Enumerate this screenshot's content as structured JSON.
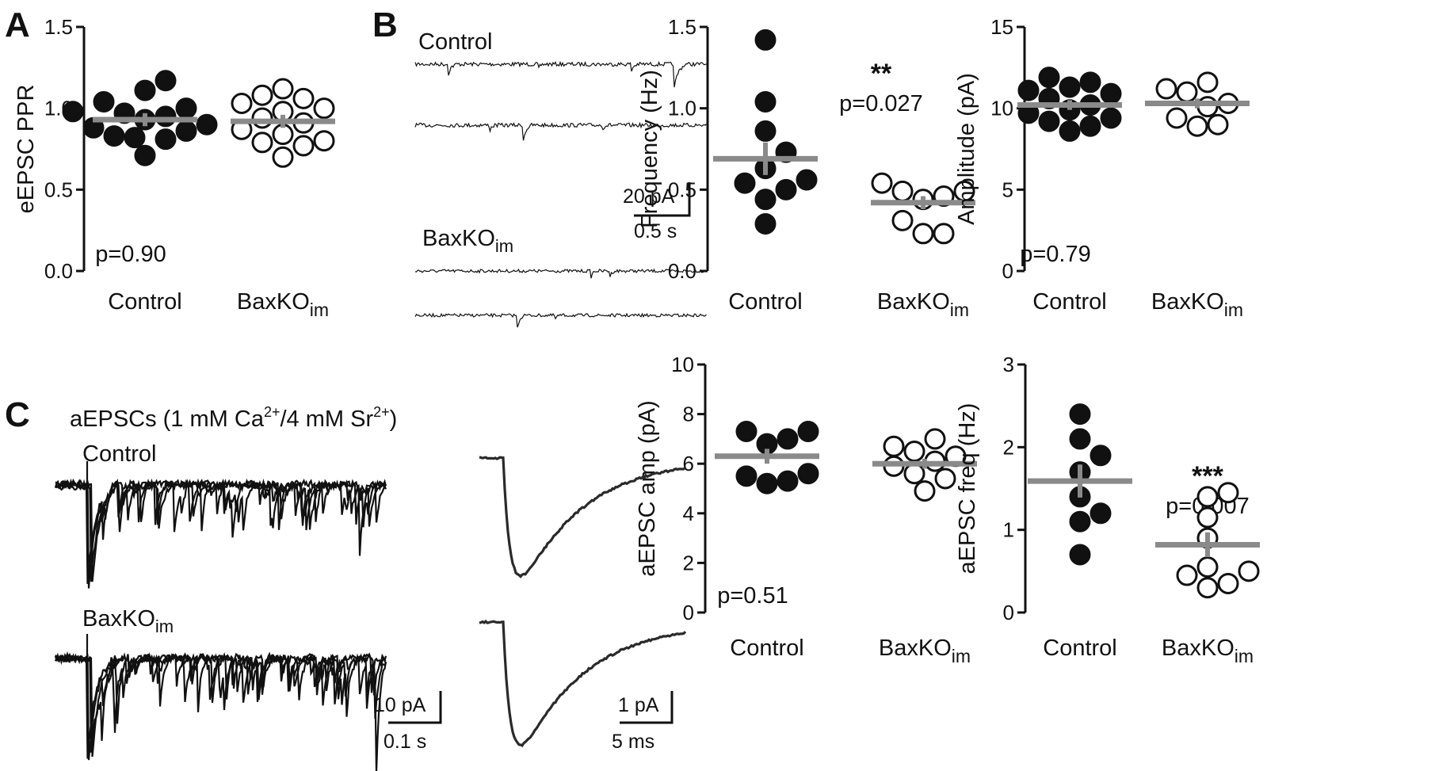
{
  "colors": {
    "filled": "#111111",
    "open": "#ffffff",
    "mean_bar": "#8a8a8a",
    "axis": "#111111"
  },
  "panels": [
    {
      "letter": "A"
    },
    {
      "letter": "B"
    },
    {
      "letter": "C"
    }
  ],
  "traces": {
    "B": {
      "control_label": "Control",
      "baxko_label": "BaxKO",
      "baxko_sub": "im",
      "scale_amp": "20 pA",
      "scale_time": "0.5 s"
    },
    "C": {
      "heading": "aEPSCs (1 mM Ca",
      "heading_sup1": "2+",
      "heading_mid": "/4 mM Sr",
      "heading_sup2": "2+",
      "heading_end": ")",
      "control_label": "Control",
      "baxko_label": "BaxKO",
      "baxko_sub": "im",
      "scale_amp_1": "10 pA",
      "scale_time_1": "0.1 s",
      "scale_amp_2": "1 pA",
      "scale_time_2": "5 ms"
    }
  },
  "chart_data": [
    {
      "id": "A",
      "type": "scatter",
      "ylabel": "eEPSC PPR",
      "ylim": [
        0,
        1.5
      ],
      "yticks": [
        "0.0",
        "0.5",
        "1.0",
        "1.5"
      ],
      "categories": [
        "Control",
        "BaxKO"
      ],
      "category_sub": [
        "",
        "im"
      ],
      "pvalue": "p=0.90",
      "stars": "",
      "series": [
        {
          "style": "filled",
          "values": [
            0.71,
            0.81,
            0.82,
            0.83,
            0.86,
            0.88,
            0.9,
            0.93,
            0.95,
            0.97,
            0.98,
            1.0,
            1.04,
            1.11,
            1.17
          ],
          "mean": 0.93,
          "sem": 0.04
        },
        {
          "style": "open",
          "values": [
            0.7,
            0.77,
            0.79,
            0.8,
            0.84,
            0.87,
            0.91,
            0.94,
            0.98,
            1.0,
            1.03,
            1.06,
            1.08,
            1.12
          ],
          "mean": 0.92,
          "sem": 0.04
        }
      ]
    },
    {
      "id": "B-freq",
      "type": "scatter",
      "ylabel": "Frequency (Hz)",
      "ylim": [
        0,
        1.5
      ],
      "yticks": [
        "0.0",
        "0.5",
        "1.0",
        "1.5"
      ],
      "categories": [
        "Control",
        "BaxKO"
      ],
      "category_sub": [
        "",
        "im"
      ],
      "pvalue": "p=0.027",
      "stars": "**",
      "series": [
        {
          "style": "filled",
          "values": [
            0.29,
            0.44,
            0.5,
            0.54,
            0.56,
            0.63,
            0.73,
            0.86,
            1.04,
            1.42
          ],
          "mean": 0.69,
          "sem": 0.1
        },
        {
          "style": "open",
          "values": [
            0.23,
            0.23,
            0.31,
            0.44,
            0.46,
            0.49,
            0.49,
            0.54
          ],
          "mean": 0.42,
          "sem": 0.04
        }
      ]
    },
    {
      "id": "B-amp",
      "type": "scatter",
      "ylabel": "Amplitude (pA)",
      "ylim": [
        0,
        15
      ],
      "yticks": [
        "0",
        "5",
        "10",
        "15"
      ],
      "categories": [
        "Control",
        "BaxKO"
      ],
      "category_sub": [
        "",
        "im"
      ],
      "pvalue": "p=0.79",
      "stars": "",
      "series": [
        {
          "style": "filled",
          "values": [
            8.6,
            8.9,
            9.2,
            9.4,
            9.7,
            9.9,
            10.2,
            10.6,
            10.9,
            11.1,
            11.3,
            11.6,
            11.9
          ],
          "mean": 10.2,
          "sem": 0.3
        },
        {
          "style": "open",
          "values": [
            8.9,
            9.0,
            9.4,
            10.1,
            10.3,
            11.0,
            11.2,
            11.6
          ],
          "mean": 10.3,
          "sem": 0.3
        }
      ]
    },
    {
      "id": "C-amp",
      "type": "scatter",
      "ylabel": "aEPSC amp (pA)",
      "ylim": [
        0,
        10
      ],
      "yticks": [
        "0",
        "2",
        "4",
        "6",
        "8",
        "10"
      ],
      "categories": [
        "Control",
        "BaxKO"
      ],
      "category_sub": [
        "",
        "im"
      ],
      "pvalue": "p=0.51",
      "stars": "",
      "series": [
        {
          "style": "filled",
          "values": [
            5.2,
            5.3,
            5.5,
            5.6,
            6.8,
            7.0,
            7.3,
            7.3
          ],
          "mean": 6.3,
          "sem": 0.3
        },
        {
          "style": "open",
          "values": [
            4.9,
            5.4,
            5.6,
            5.9,
            6.1,
            6.3,
            6.5,
            6.7,
            7.0
          ],
          "mean": 6.0,
          "sem": 0.2
        }
      ]
    },
    {
      "id": "C-freq",
      "type": "scatter",
      "ylabel": "aEPSC freq (Hz)",
      "ylim": [
        0,
        3
      ],
      "yticks": [
        "0",
        "1",
        "2",
        "3"
      ],
      "categories": [
        "Control",
        "BaxKO"
      ],
      "category_sub": [
        "",
        "im"
      ],
      "pvalue": "p=0.007",
      "stars": "***",
      "series": [
        {
          "style": "filled",
          "values": [
            0.7,
            1.1,
            1.2,
            1.4,
            1.7,
            1.9,
            2.1,
            2.4
          ],
          "mean": 1.59,
          "sem": 0.2
        },
        {
          "style": "open",
          "values": [
            0.3,
            0.35,
            0.45,
            0.5,
            0.55,
            0.9,
            1.15,
            1.4,
            1.45
          ],
          "mean": 0.82,
          "sem": 0.15
        }
      ]
    }
  ]
}
